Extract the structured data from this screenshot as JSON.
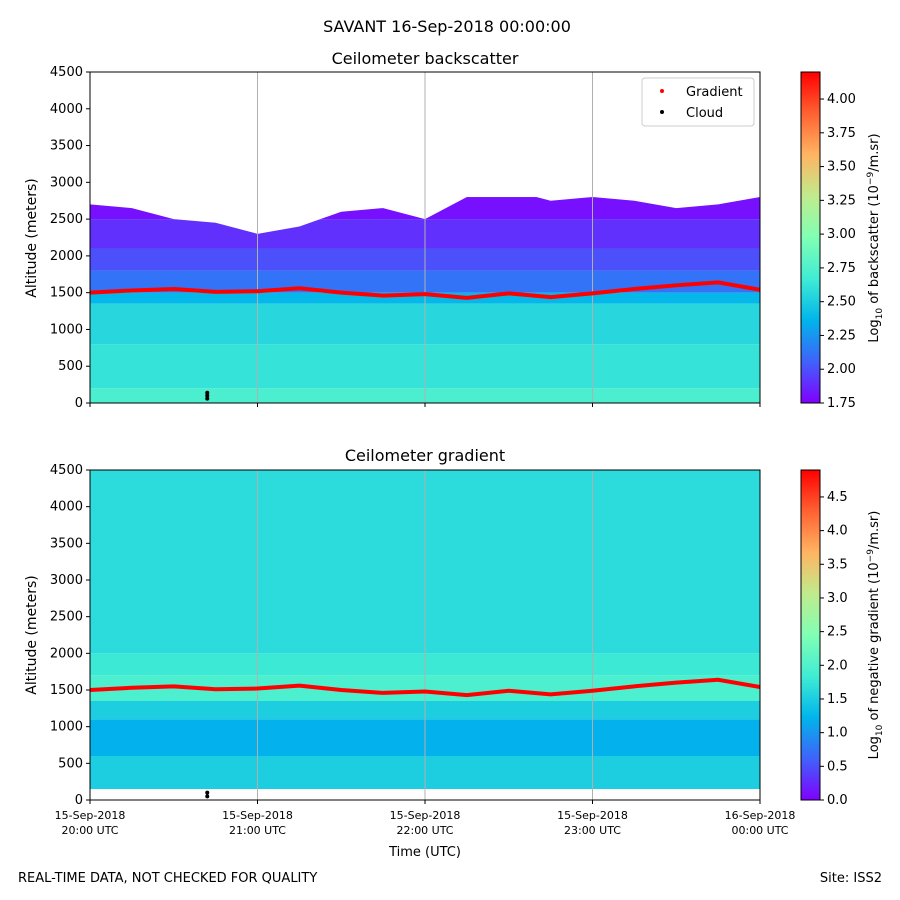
{
  "figure": {
    "suptitle": "SAVANT 16-Sep-2018 00:00:00",
    "footer_left": "REAL-TIME DATA, NOT CHECKED FOR QUALITY",
    "footer_right": "Site: ISS2"
  },
  "chart_data": [
    {
      "type": "heatmap",
      "title": "Ceilometer backscatter",
      "ylabel": "Altitude (meters)",
      "xlabel": "",
      "ylim": [
        0,
        4500
      ],
      "yticks": [
        0,
        500,
        1000,
        1500,
        2000,
        2500,
        3000,
        3500,
        4000,
        4500
      ],
      "x_hours": [
        20,
        24
      ],
      "xticks_hours": [
        20,
        21,
        22,
        23,
        24
      ],
      "xtick_labels": [],
      "colormap": "rainbow",
      "colorbar": {
        "label": "Log10 of backscatter (10^-9/m.sr)",
        "label_parts": [
          "Log",
          "10",
          " of backscatter (10",
          "−9",
          "/m.sr)"
        ],
        "range": [
          1.75,
          4.2
        ],
        "ticks": [
          "1.75",
          "2.00",
          "2.25",
          "2.50",
          "2.75",
          "3.00",
          "3.25",
          "3.50",
          "3.75",
          "4.00"
        ]
      },
      "legend": {
        "location": "top-right",
        "entries": [
          {
            "label": "Gradient",
            "color": "#ff0000"
          },
          {
            "label": "Cloud",
            "color": "#000000"
          }
        ]
      },
      "layer_bands": [
        {
          "from": 0,
          "to": 200,
          "value": 2.72
        },
        {
          "from": 200,
          "to": 800,
          "value": 2.62
        },
        {
          "from": 800,
          "to": 1350,
          "value": 2.55
        },
        {
          "from": 1350,
          "to": 1500,
          "value": 2.38
        },
        {
          "from": 1500,
          "to": 1800,
          "value": 2.12
        },
        {
          "from": 1800,
          "to": 2100,
          "value": 2.0
        },
        {
          "from": 2100,
          "to": 2500,
          "value": 1.9
        },
        {
          "from": 2500,
          "to": 2800,
          "value": 1.8
        }
      ],
      "top_of_signal": {
        "x_hours": [
          20.0,
          20.25,
          20.5,
          20.75,
          21.0,
          21.25,
          21.5,
          21.75,
          22.0,
          22.25,
          22.5,
          22.75,
          23.0,
          23.25,
          23.5,
          23.75,
          24.0
        ],
        "altitude": [
          2700,
          2650,
          2500,
          2450,
          2300,
          2400,
          2600,
          2650,
          2500,
          2800,
          2900,
          2750,
          2800,
          2750,
          2650,
          2700,
          2800
        ]
      },
      "gradient_series": {
        "x_hours": [
          20.0,
          20.25,
          20.5,
          20.75,
          21.0,
          21.25,
          21.5,
          21.75,
          22.0,
          22.25,
          22.5,
          22.75,
          23.0,
          23.25,
          23.5,
          23.75,
          24.0
        ],
        "altitude": [
          1500,
          1530,
          1550,
          1510,
          1520,
          1560,
          1500,
          1460,
          1480,
          1430,
          1490,
          1440,
          1490,
          1550,
          1600,
          1640,
          1540
        ]
      },
      "cloud_points": {
        "x_hours": [
          20.7,
          20.7,
          20.7
        ],
        "altitude": [
          60,
          100,
          140
        ]
      }
    },
    {
      "type": "heatmap",
      "title": "Ceilometer gradient",
      "ylabel": "Altitude (meters)",
      "xlabel": "Time (UTC)",
      "ylim": [
        0,
        4500
      ],
      "yticks": [
        0,
        500,
        1000,
        1500,
        2000,
        2500,
        3000,
        3500,
        4000,
        4500
      ],
      "x_hours": [
        20,
        24
      ],
      "xticks_hours": [
        20,
        21,
        22,
        23,
        24
      ],
      "xtick_labels": [
        [
          "15-Sep-2018",
          "20:00 UTC"
        ],
        [
          "15-Sep-2018",
          "21:00 UTC"
        ],
        [
          "15-Sep-2018",
          "22:00 UTC"
        ],
        [
          "15-Sep-2018",
          "23:00 UTC"
        ],
        [
          "16-Sep-2018",
          "00:00 UTC"
        ]
      ],
      "colormap": "rainbow",
      "colorbar": {
        "label": "Log10 of negative gradient (10^-9/m.sr)",
        "label_parts": [
          "Log",
          "10",
          " of negative gradient (10",
          "−9",
          "/m.sr)"
        ],
        "range": [
          0.0,
          4.9
        ],
        "ticks": [
          "0.0",
          "0.5",
          "1.0",
          "1.5",
          "2.0",
          "2.5",
          "3.0",
          "3.5",
          "4.0",
          "4.5"
        ]
      },
      "layer_bands": [
        {
          "from": 150,
          "to": 600,
          "value": 1.5
        },
        {
          "from": 600,
          "to": 1100,
          "value": 1.2
        },
        {
          "from": 1100,
          "to": 1350,
          "value": 1.5
        },
        {
          "from": 1350,
          "to": 1700,
          "value": 1.95
        },
        {
          "from": 1700,
          "to": 2000,
          "value": 1.8
        },
        {
          "from": 2000,
          "to": 4500,
          "value": 1.65
        }
      ],
      "gradient_series": {
        "x_hours": [
          20.0,
          20.25,
          20.5,
          20.75,
          21.0,
          21.25,
          21.5,
          21.75,
          22.0,
          22.25,
          22.5,
          22.75,
          23.0,
          23.25,
          23.5,
          23.75,
          24.0
        ],
        "altitude": [
          1500,
          1530,
          1550,
          1510,
          1520,
          1560,
          1500,
          1460,
          1480,
          1430,
          1490,
          1440,
          1490,
          1550,
          1600,
          1640,
          1540
        ]
      },
      "cloud_points": {
        "x_hours": [
          20.7,
          20.7
        ],
        "altitude": [
          50,
          100
        ]
      }
    }
  ]
}
